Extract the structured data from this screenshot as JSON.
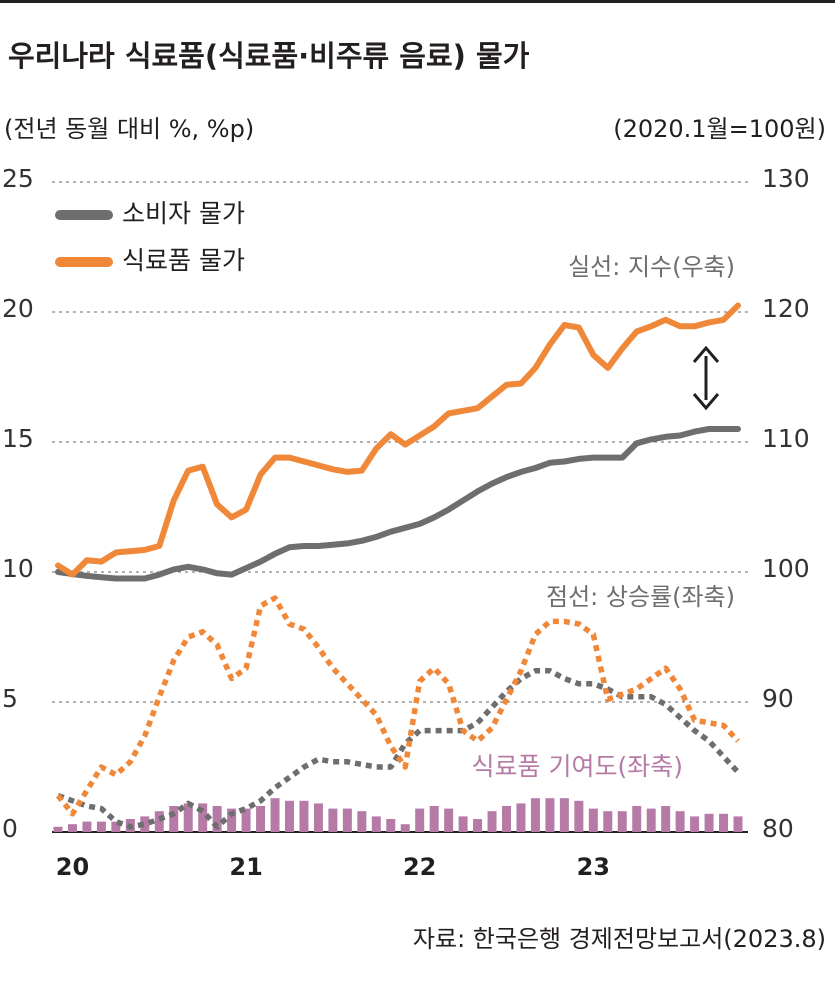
{
  "chart_data": {
    "type": "line",
    "title": "우리나라 식료품(식료품·비주류 음료) 물가",
    "y_axis_label": "(전년 동월 대비 %, %p)",
    "y2_axis_label": "(2020.1월=100원)",
    "annotations": [
      "실선: 지수(우축)",
      "점선: 상승률(좌축)"
    ],
    "source": "자료: 한국은행 경제전망보고서(2023.8)",
    "categories": [
      null,
      "20",
      null,
      null,
      null,
      null,
      null,
      null,
      null,
      null,
      null,
      null,
      null,
      "21",
      null,
      null,
      null,
      null,
      null,
      null,
      null,
      null,
      null,
      null,
      null,
      "22",
      null,
      null,
      null,
      null,
      null,
      null,
      null,
      null,
      null,
      null,
      null,
      "23",
      null,
      null,
      null,
      null,
      null,
      null,
      null,
      null,
      null,
      null
    ],
    "ylim": [
      0,
      25
    ],
    "yticks": [
      0,
      5,
      10,
      15,
      20,
      25
    ],
    "y2lim": [
      80,
      130
    ],
    "y2ticks": [
      80,
      90,
      100,
      110,
      120,
      130
    ],
    "grid": true,
    "legend": "upper left",
    "series": [
      {
        "name": "소비자 물가",
        "color": "#6d6e70",
        "axis": "y2",
        "style": "solid",
        "values": [
          100,
          99.85,
          99.7,
          99.6,
          99.5,
          99.5,
          99.5,
          99.8,
          100.2,
          100.4,
          100.2,
          99.9,
          99.8,
          100.3,
          100.8,
          101.4,
          101.9,
          102.0,
          102.0,
          102.1,
          102.2,
          102.4,
          102.7,
          103.1,
          103.4,
          103.7,
          104.2,
          104.8,
          105.5,
          106.2,
          106.8,
          107.3,
          107.7,
          108.0,
          108.4,
          108.5,
          108.7,
          108.8,
          108.8,
          108.8,
          109.9,
          110.2,
          110.4,
          110.5,
          110.8,
          111.0,
          111.0,
          111.0
        ]
      },
      {
        "name": "식료품 물가",
        "color": "#f0883a",
        "axis": "y2",
        "style": "solid",
        "values": [
          100.5,
          99.8,
          100.9,
          100.8,
          101.5,
          101.6,
          101.7,
          102.0,
          105.5,
          107.8,
          108.1,
          105.2,
          104.2,
          104.8,
          107.5,
          108.8,
          108.8,
          108.5,
          108.2,
          107.9,
          107.7,
          107.8,
          109.5,
          110.6,
          109.8,
          110.5,
          111.2,
          112.2,
          112.4,
          112.6,
          113.5,
          114.4,
          114.5,
          115.7,
          117.5,
          119.0,
          118.8,
          116.7,
          115.7,
          117.2,
          118.5,
          118.9,
          119.4,
          118.9,
          118.9,
          119.2,
          119.4,
          120.5
        ]
      },
      {
        "color": "#6d6e70",
        "axis": "y",
        "style": "dotted",
        "values": [
          1.4,
          1.2,
          1.0,
          0.9,
          0.4,
          0.2,
          0.3,
          0.5,
          0.7,
          1.1,
          0.8,
          0.2,
          0.7,
          0.9,
          1.2,
          1.7,
          2.1,
          2.5,
          2.8,
          2.7,
          2.7,
          2.6,
          2.5,
          2.5,
          3.4,
          3.9,
          3.9,
          3.9,
          3.9,
          4.2,
          4.8,
          5.4,
          5.9,
          6.2,
          6.2,
          5.9,
          5.7,
          5.7,
          5.5,
          5.2,
          5.2,
          5.2,
          4.9,
          4.4,
          3.9,
          3.5,
          2.9,
          2.3
        ]
      },
      {
        "color": "#f0883a",
        "axis": "y",
        "style": "dotted",
        "values": [
          1.4,
          0.7,
          1.6,
          2.5,
          2.2,
          2.7,
          3.7,
          5.2,
          6.6,
          7.5,
          7.7,
          7.2,
          5.9,
          6.3,
          8.7,
          9.0,
          8.0,
          7.8,
          7.1,
          6.3,
          5.7,
          5.1,
          4.5,
          3.3,
          2.5,
          5.8,
          6.3,
          5.7,
          3.9,
          3.5,
          4.0,
          5.1,
          6.2,
          7.6,
          8.1,
          8.1,
          8.0,
          7.6,
          5.1,
          5.3,
          5.5,
          5.9,
          6.3,
          5.5,
          4.3,
          4.2,
          4.1,
          3.5
        ]
      },
      {
        "name": "식료품 기여도(좌축)",
        "color": "#b57ba6",
        "axis": "y",
        "style": "bar",
        "values": [
          0.2,
          0.3,
          0.4,
          0.4,
          0.4,
          0.5,
          0.6,
          0.8,
          1.0,
          1.1,
          1.1,
          1.0,
          0.9,
          0.9,
          1.0,
          1.3,
          1.2,
          1.2,
          1.1,
          0.9,
          0.9,
          0.8,
          0.6,
          0.5,
          0.3,
          0.9,
          1.0,
          0.9,
          0.6,
          0.5,
          0.8,
          1.0,
          1.1,
          1.3,
          1.3,
          1.3,
          1.2,
          0.9,
          0.8,
          0.8,
          1.0,
          0.9,
          1.0,
          0.8,
          0.6,
          0.7,
          0.7,
          0.6
        ]
      }
    ]
  }
}
